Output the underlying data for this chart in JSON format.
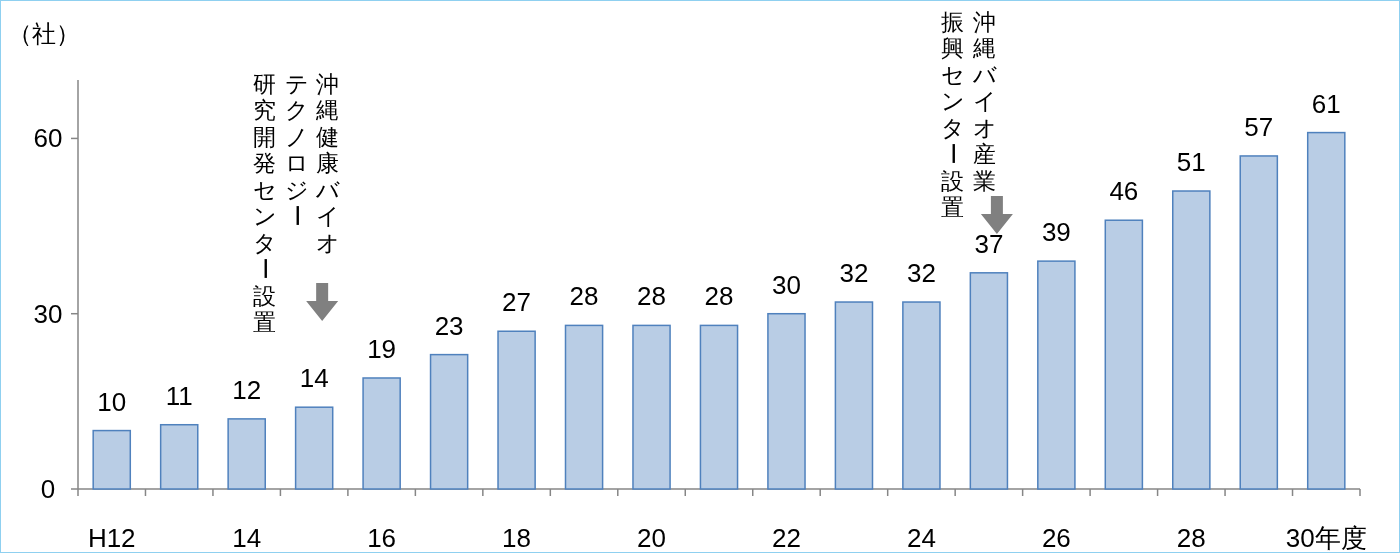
{
  "chart_data": {
    "type": "bar",
    "ylabel": "（社）",
    "categories": [
      "H12",
      null,
      "14",
      null,
      "16",
      null,
      "18",
      null,
      "20",
      null,
      "22",
      null,
      "24",
      null,
      "26",
      null,
      "28",
      null,
      "30年度"
    ],
    "values": [
      10,
      11,
      12,
      14,
      19,
      23,
      27,
      28,
      28,
      28,
      30,
      32,
      32,
      37,
      39,
      46,
      51,
      57,
      61
    ],
    "color": "#b9cde5",
    "ylim": [
      0,
      70
    ],
    "yticks": [
      0,
      30,
      60
    ],
    "grid": false,
    "data_labels": true,
    "annotations": [
      "沖縄健康バイオ",
      "テクノロジー",
      "研究開発センター設置",
      "沖縄バイオ産業",
      "振興センター設置"
    ]
  }
}
